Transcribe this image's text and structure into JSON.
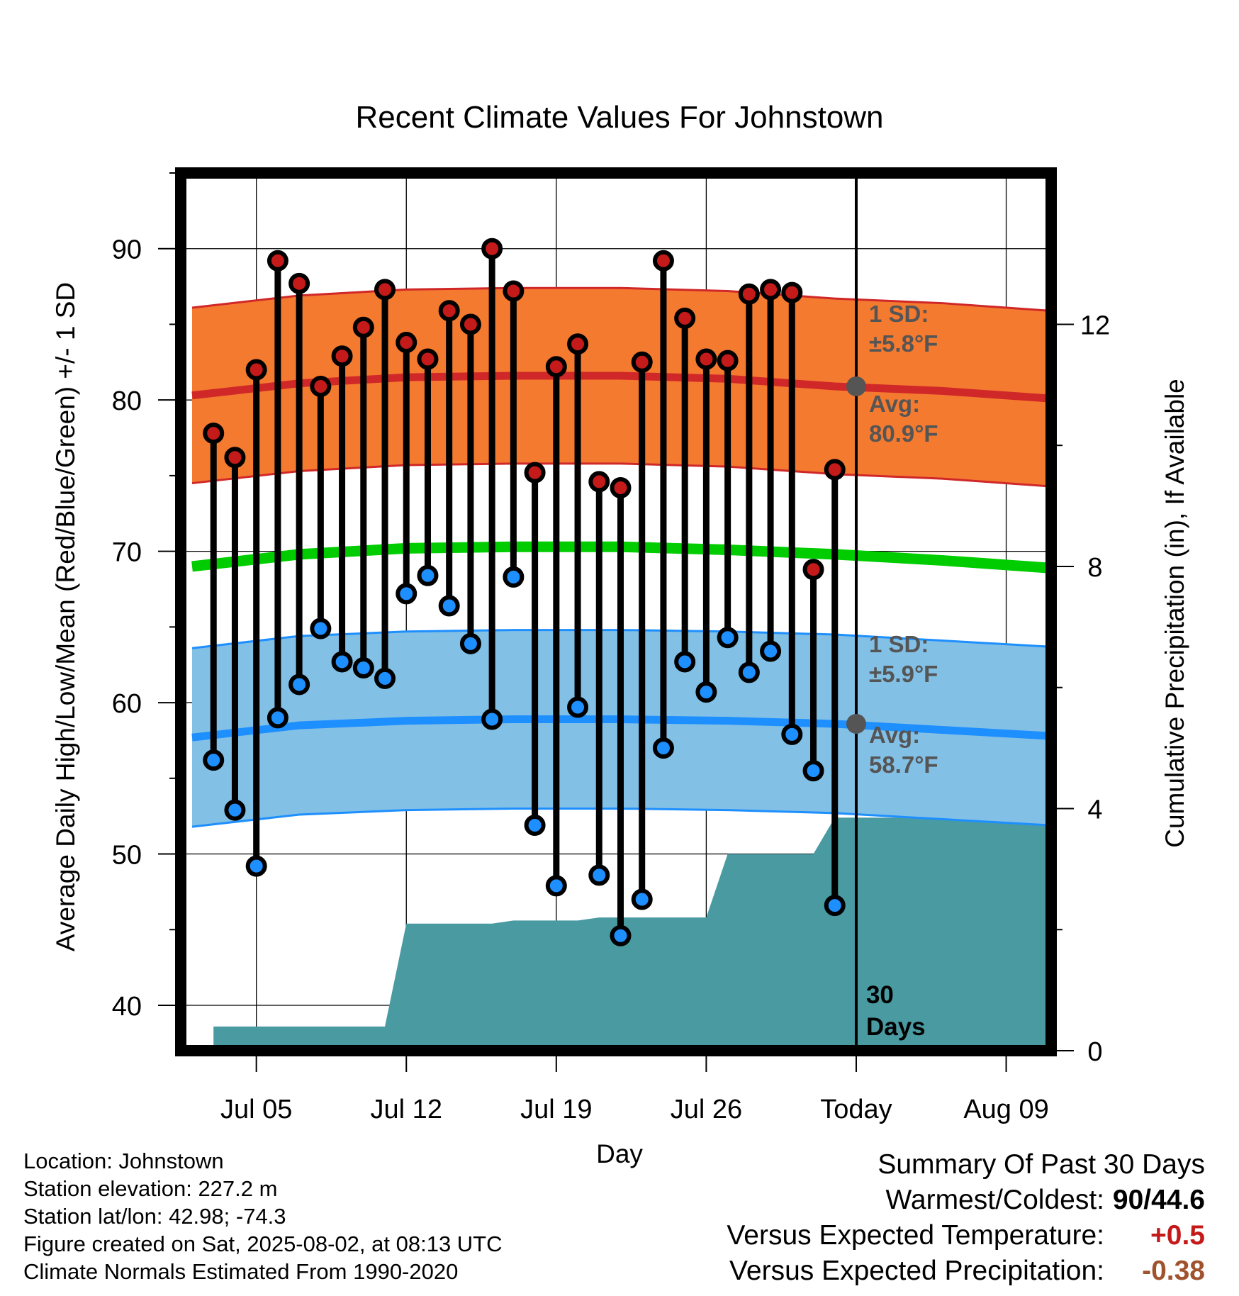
{
  "chart_data": {
    "type": "line",
    "title": "Recent Climate Values For Johnstown",
    "xlabel": "Day",
    "ylabel_left": "Average Daily High/Low/Mean (Red/Blue/Green) +/- 1 SD",
    "ylabel_right": "Cumulative Precipitation (in), If Available",
    "ylim_left": [
      37,
      95
    ],
    "ylim_right": [
      0,
      14.5
    ],
    "xlim": [
      "Jul 02",
      "Aug 11"
    ],
    "left_ticks": [
      40,
      50,
      60,
      70,
      80,
      90
    ],
    "right_ticks": [
      0,
      4,
      8,
      12
    ],
    "x_ticks": [
      {
        "date": "Jul 05",
        "label": "Jul 05"
      },
      {
        "date": "Jul 12",
        "label": "Jul 12"
      },
      {
        "date": "Jul 19",
        "label": "Jul 19"
      },
      {
        "date": "Jul 26",
        "label": "Jul 26"
      },
      {
        "date": "Aug 02",
        "label": "Today"
      },
      {
        "date": "Aug 09",
        "label": "Aug 09"
      }
    ],
    "today": "Aug 02",
    "days": [
      "Jul 03",
      "Jul 04",
      "Jul 05",
      "Jul 06",
      "Jul 07",
      "Jul 08",
      "Jul 09",
      "Jul 10",
      "Jul 11",
      "Jul 12",
      "Jul 13",
      "Jul 14",
      "Jul 15",
      "Jul 16",
      "Jul 17",
      "Jul 18",
      "Jul 19",
      "Jul 20",
      "Jul 21",
      "Jul 22",
      "Jul 23",
      "Jul 24",
      "Jul 25",
      "Jul 26",
      "Jul 27",
      "Jul 28",
      "Jul 29",
      "Jul 30",
      "Jul 31",
      "Aug 01"
    ],
    "series": [
      {
        "name": "High",
        "color": "#c41a1a",
        "values": [
          77.8,
          76.2,
          82.0,
          89.2,
          87.7,
          80.9,
          82.9,
          84.8,
          87.3,
          83.8,
          82.7,
          85.9,
          85.0,
          90.0,
          87.2,
          75.2,
          82.2,
          83.7,
          74.6,
          74.2,
          82.5,
          89.2,
          85.4,
          82.7,
          82.6,
          87.0,
          87.3,
          87.1,
          68.8,
          75.4
        ]
      },
      {
        "name": "Low",
        "color": "#1e8fff",
        "values": [
          56.2,
          52.9,
          49.2,
          59.0,
          61.2,
          64.9,
          62.7,
          62.3,
          61.6,
          67.2,
          68.4,
          66.4,
          63.9,
          58.9,
          68.3,
          51.9,
          47.9,
          59.7,
          48.6,
          44.6,
          47.0,
          57.0,
          62.7,
          60.7,
          64.3,
          62.0,
          63.4,
          57.9,
          55.5,
          46.6
        ]
      }
    ],
    "normals": {
      "dates": [
        "Jul 02",
        "Jul 07",
        "Jul 12",
        "Jul 17",
        "Jul 22",
        "Jul 27",
        "Aug 01",
        "Aug 06",
        "Aug 11"
      ],
      "high_avg": [
        80.3,
        81.1,
        81.5,
        81.6,
        81.6,
        81.4,
        80.9,
        80.6,
        80.1
      ],
      "low_avg": [
        57.7,
        58.5,
        58.8,
        58.9,
        58.9,
        58.8,
        58.6,
        58.2,
        57.8
      ],
      "mean_avg": [
        69.0,
        69.8,
        70.2,
        70.3,
        70.3,
        70.1,
        69.8,
        69.4,
        68.9
      ],
      "high_sd": 5.8,
      "low_sd": 5.9
    },
    "precip": {
      "points": [
        [
          "Jul 02",
          0
        ],
        [
          "Jul 03",
          0
        ],
        [
          "Jul 03",
          0.4
        ],
        [
          "Jul 11",
          0.4
        ],
        [
          "Jul 12",
          2.1
        ],
        [
          "Jul 16",
          2.1
        ],
        [
          "Jul 17",
          2.15
        ],
        [
          "Jul 20",
          2.15
        ],
        [
          "Jul 21",
          2.2
        ],
        [
          "Jul 26",
          2.2
        ],
        [
          "Jul 27",
          3.25
        ],
        [
          "Jul 31",
          3.25
        ],
        [
          "Aug 01",
          3.85
        ],
        [
          "Aug 11",
          3.85
        ]
      ]
    },
    "colors": {
      "high_band": "#f47a30",
      "high_line": "#d02828",
      "low_band": "#82c0e6",
      "low_line": "#1e8fff",
      "mean_line": "#00cc00",
      "precip": "#4a9aa2",
      "annotation": "#555555"
    },
    "annotations": {
      "high_sd_label": "1 SD:",
      "high_sd_value": "±5.8°F",
      "high_avg_label": "Avg:",
      "high_avg_value": "80.9°F",
      "low_sd_label": "1 SD:",
      "low_sd_value": "±5.9°F",
      "low_avg_label": "Avg:",
      "low_avg_value": "58.7°F",
      "days_count": "30",
      "days_word": "Days"
    }
  },
  "info": {
    "location": "Location: Johnstown",
    "elevation": "Station elevation: 227.2 m",
    "latlon": "Station lat/lon: 42.98; -74.3",
    "created": "Figure created on Sat, 2025-08-02, at 08:13 UTC",
    "normals": "Climate Normals Estimated From 1990-2020"
  },
  "summary": {
    "title": "Summary Of Past 30 Days",
    "warm_cold_label": "Warmest/Coldest:",
    "warm_cold_value": "90/44.6",
    "temp_label": "Versus Expected Temperature:",
    "temp_value": "+0.5",
    "temp_color": "#c41a1a",
    "precip_label": "Versus Expected Precipitation:",
    "precip_value": "-0.38",
    "precip_color": "#a0522d"
  }
}
